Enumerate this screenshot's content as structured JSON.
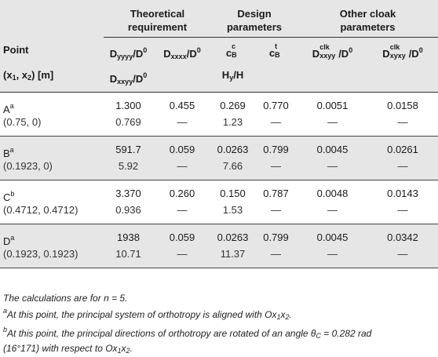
{
  "header": {
    "group_theoretical": "Theoretical requirement",
    "group_design": "Design parameters",
    "group_other": "Other cloak parameters",
    "point_label": "Point",
    "coords_label": "(x",
    "coords_sub1": "1",
    "coords_mid": ", x",
    "coords_sub2": "2",
    "coords_tail": ") [m]",
    "d_yyyy_pre": "D",
    "d_yyyy_sub": "yyyy",
    "d_over": "/D",
    "d_zero": "0",
    "d_xxxx_sub": "xxxx",
    "d_xxyy_sub": "xxyy",
    "c_letter": "c",
    "c_sub": "B",
    "c_sup_c": "c",
    "c_sup_t": "t",
    "hy_label": "H",
    "hy_sub": "y",
    "hy_tail": "/H",
    "clk_sup": "clk",
    "clk_sub1": "xxyy",
    "clk_sub2": "xyxy"
  },
  "rows": [
    {
      "point": "A",
      "mark": "a",
      "coords": "(0.75, 0)",
      "d1": "1.300",
      "d1b": "0.769",
      "dxxxx": "0.455",
      "dxxxx_b": "—",
      "cc": "0.269",
      "cc_b": "1.23",
      "ct": "0.770",
      "ct_b": "—",
      "clk1": "0.0051",
      "clk1_b": "—",
      "clk2": "0.0158",
      "clk2_b": "—"
    },
    {
      "point": "B",
      "mark": "a",
      "coords": "(0.1923, 0)",
      "d1": "591.7",
      "d1b": "5.92",
      "dxxxx": "0.059",
      "dxxxx_b": "—",
      "cc": "0.0263",
      "cc_b": "7.66",
      "ct": "0.799",
      "ct_b": "—",
      "clk1": "0.0045",
      "clk1_b": "—",
      "clk2": "0.0261",
      "clk2_b": "—"
    },
    {
      "point": "C",
      "mark": "b",
      "coords": "(0.4712, 0.4712)",
      "d1": "3.370",
      "d1b": "0.936",
      "dxxxx": "0.260",
      "dxxxx_b": "—",
      "cc": "0.150",
      "cc_b": "1.53",
      "ct": "0.787",
      "ct_b": "—",
      "clk1": "0.0048",
      "clk1_b": "—",
      "clk2": "0.0143",
      "clk2_b": "—"
    },
    {
      "point": "D",
      "mark": "a",
      "coords": "(0.1923, 0.1923)",
      "d1": "1938",
      "d1b": "10.71",
      "dxxxx": "0.059",
      "dxxxx_b": "—",
      "cc": "0.0263",
      "cc_b": "11.37",
      "ct": "0.799",
      "ct_b": "—",
      "clk1": "0.0045",
      "clk1_b": "—",
      "clk2": "0.0342",
      "clk2_b": "—"
    }
  ],
  "notes": {
    "n1": "The calculations are for n = 5.",
    "n2_mark": "a",
    "n2": "At this point, the principal system of orthotropy is aligned with Ox",
    "n2_s1": "1",
    "n2_x": "x",
    "n2_s2": "2",
    "n2_end": ".",
    "n3_mark": "b",
    "n3": "At this point, the principal directions of orthotropy are rotated of an angle θ",
    "n3_sub": "C",
    "n3_mid": " = 0.282 rad",
    "n3_line2": "(16°171) with respect to Ox",
    "n3_s1": "1",
    "n3_x": "x",
    "n3_s2": "2",
    "n3_end": "."
  }
}
